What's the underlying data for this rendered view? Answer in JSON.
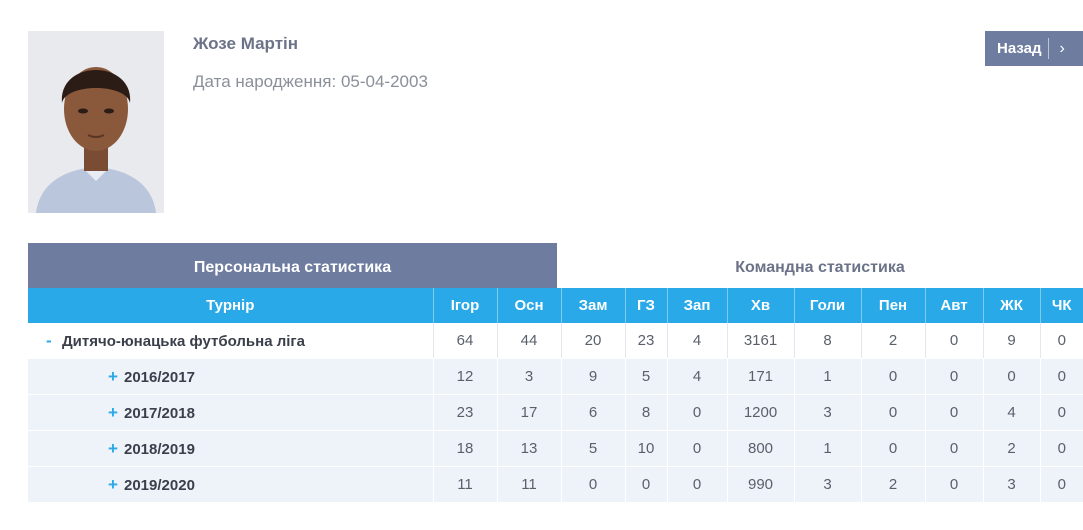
{
  "player": {
    "name": "Жозе Мартін",
    "dob_label": "Дата народження:",
    "dob_value": "05-04-2003"
  },
  "back_button": {
    "label": "Назад",
    "icon": "chevron-right-icon"
  },
  "tabs": [
    {
      "label": "Персональна статистика",
      "active": true
    },
    {
      "label": "Командна статистика",
      "active": false
    }
  ],
  "colors": {
    "accent_slate": "#6e7ca0",
    "header_blue": "#29a9e8",
    "row_alt": "#eef3fa"
  },
  "table": {
    "columns": [
      "Турнір",
      "Ігор",
      "Осн",
      "Зам",
      "ГЗ",
      "Зап",
      "Хв",
      "Голи",
      "Пен",
      "Авт",
      "ЖК",
      "ЧК"
    ],
    "rows": [
      {
        "toggle": "-",
        "name": "Дитячо-юнацька футбольна ліга",
        "type": "league",
        "values": [
          "64",
          "44",
          "20",
          "23",
          "4",
          "3161",
          "8",
          "2",
          "0",
          "9",
          "0"
        ]
      },
      {
        "toggle": "+",
        "name": "2016/2017",
        "type": "season",
        "values": [
          "12",
          "3",
          "9",
          "5",
          "4",
          "171",
          "1",
          "0",
          "0",
          "0",
          "0"
        ]
      },
      {
        "toggle": "+",
        "name": "2017/2018",
        "type": "season",
        "values": [
          "23",
          "17",
          "6",
          "8",
          "0",
          "1200",
          "3",
          "0",
          "0",
          "4",
          "0"
        ]
      },
      {
        "toggle": "+",
        "name": "2018/2019",
        "type": "season",
        "values": [
          "18",
          "13",
          "5",
          "10",
          "0",
          "800",
          "1",
          "0",
          "0",
          "2",
          "0"
        ]
      },
      {
        "toggle": "+",
        "name": "2019/2020",
        "type": "season",
        "values": [
          "11",
          "11",
          "0",
          "0",
          "0",
          "990",
          "3",
          "2",
          "0",
          "3",
          "0"
        ]
      }
    ]
  }
}
